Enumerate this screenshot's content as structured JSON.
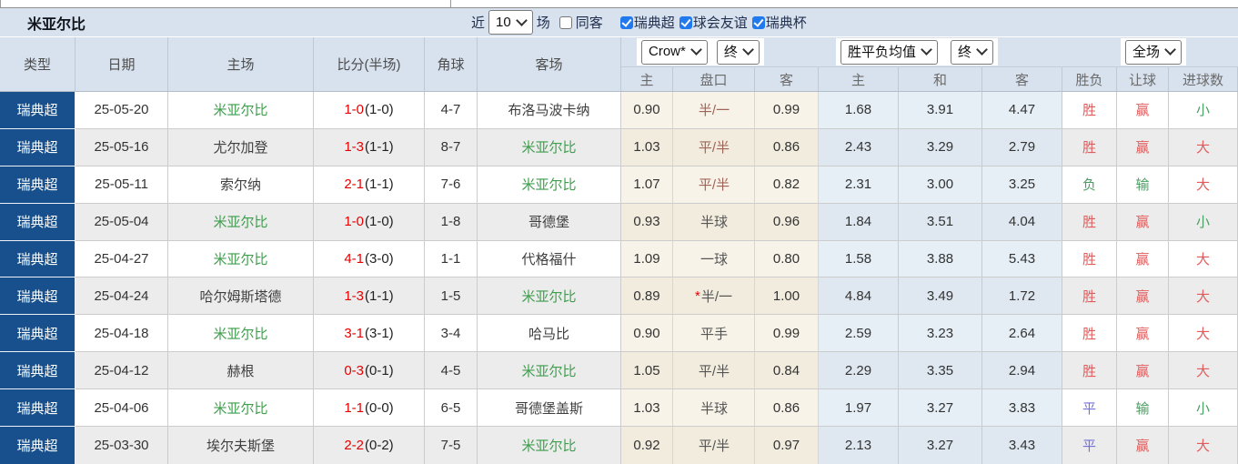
{
  "title_bar": {
    "title": "米亚尔比",
    "recent_label": "近",
    "recent_value": "10",
    "unit_label": "场",
    "same_venue_label": "同客",
    "same_venue_checked": false,
    "filters": [
      {
        "label": "瑞典超",
        "checked": true
      },
      {
        "label": "球会友谊",
        "checked": true
      },
      {
        "label": "瑞典杯",
        "checked": true
      }
    ]
  },
  "header": {
    "columns_left": [
      "类型",
      "日期",
      "主场",
      "比分(半场)",
      "角球",
      "客场"
    ],
    "odds_source": "Crow*",
    "odds_stage": "终",
    "avg_source": "胜平负均值",
    "avg_stage": "终",
    "scope": "全场",
    "odds_sub": [
      "主",
      "盘口",
      "客"
    ],
    "avg_sub": [
      "主",
      "和",
      "客"
    ],
    "result_sub": [
      "胜负",
      "让球",
      "进球数"
    ]
  },
  "star_glyph": "*",
  "colors": {
    "league_cell_bg": "#17508c",
    "score_red": "#e60000",
    "team_green": "#3f9e4d",
    "win_red": "#e25b5b",
    "lose_green": "#4a9d62",
    "draw_blue": "#7372d6",
    "handicap_red": "#a06358",
    "odds_col_bg": "#f8f3e8",
    "avg_col_bg": "#e6eff6",
    "header_bg": "#d8e2ee",
    "checkbox_blue": "#2179ee"
  },
  "rows": [
    {
      "league": "瑞典超",
      "date": "25-05-20",
      "home": "米亚尔比",
      "home_green": true,
      "score": "1-0",
      "half": "(1-0)",
      "corners": "4-7",
      "away": "布洛马波卡纳",
      "away_green": false,
      "o1": "0.90",
      "pan": "半/一",
      "pan_star": false,
      "pan_color": "red",
      "o2": "0.99",
      "m1": "1.68",
      "m2": "3.91",
      "m3": "4.47",
      "r1": "胜",
      "r1c": "red",
      "r2": "赢",
      "r2c": "red",
      "r3": "小",
      "r3c": "green"
    },
    {
      "league": "瑞典超",
      "date": "25-05-16",
      "home": "尤尔加登",
      "home_green": false,
      "score": "1-3",
      "half": "(1-1)",
      "corners": "8-7",
      "away": "米亚尔比",
      "away_green": true,
      "o1": "1.03",
      "pan": "平/半",
      "pan_star": false,
      "pan_color": "red",
      "o2": "0.86",
      "m1": "2.43",
      "m2": "3.29",
      "m3": "2.79",
      "r1": "胜",
      "r1c": "red",
      "r2": "赢",
      "r2c": "red",
      "r3": "大",
      "r3c": "red"
    },
    {
      "league": "瑞典超",
      "date": "25-05-11",
      "home": "索尔纳",
      "home_green": false,
      "score": "2-1",
      "half": "(1-1)",
      "corners": "7-6",
      "away": "米亚尔比",
      "away_green": true,
      "o1": "1.07",
      "pan": "平/半",
      "pan_star": false,
      "pan_color": "red",
      "o2": "0.82",
      "m1": "2.31",
      "m2": "3.00",
      "m3": "3.25",
      "r1": "负",
      "r1c": "green",
      "r2": "输",
      "r2c": "green",
      "r3": "大",
      "r3c": "red"
    },
    {
      "league": "瑞典超",
      "date": "25-05-04",
      "home": "米亚尔比",
      "home_green": true,
      "score": "1-0",
      "half": "(1-0)",
      "corners": "1-8",
      "away": "哥德堡",
      "away_green": false,
      "o1": "0.93",
      "pan": "半球",
      "pan_star": false,
      "pan_color": "gray",
      "o2": "0.96",
      "m1": "1.84",
      "m2": "3.51",
      "m3": "4.04",
      "r1": "胜",
      "r1c": "red",
      "r2": "赢",
      "r2c": "red",
      "r3": "小",
      "r3c": "green"
    },
    {
      "league": "瑞典超",
      "date": "25-04-27",
      "home": "米亚尔比",
      "home_green": true,
      "score": "4-1",
      "half": "(3-0)",
      "corners": "1-1",
      "away": "代格福什",
      "away_green": false,
      "o1": "1.09",
      "pan": "一球",
      "pan_star": false,
      "pan_color": "gray",
      "o2": "0.80",
      "m1": "1.58",
      "m2": "3.88",
      "m3": "5.43",
      "r1": "胜",
      "r1c": "red",
      "r2": "赢",
      "r2c": "red",
      "r3": "大",
      "r3c": "red"
    },
    {
      "league": "瑞典超",
      "date": "25-04-24",
      "home": "哈尔姆斯塔德",
      "home_green": false,
      "score": "1-3",
      "half": "(1-1)",
      "corners": "1-5",
      "away": "米亚尔比",
      "away_green": true,
      "o1": "0.89",
      "pan": "半/一",
      "pan_star": true,
      "pan_color": "gray",
      "o2": "1.00",
      "m1": "4.84",
      "m2": "3.49",
      "m3": "1.72",
      "r1": "胜",
      "r1c": "red",
      "r2": "赢",
      "r2c": "red",
      "r3": "大",
      "r3c": "red"
    },
    {
      "league": "瑞典超",
      "date": "25-04-18",
      "home": "米亚尔比",
      "home_green": true,
      "score": "3-1",
      "half": "(3-1)",
      "corners": "3-4",
      "away": "哈马比",
      "away_green": false,
      "o1": "0.90",
      "pan": "平手",
      "pan_star": false,
      "pan_color": "gray",
      "o2": "0.99",
      "m1": "2.59",
      "m2": "3.23",
      "m3": "2.64",
      "r1": "胜",
      "r1c": "red",
      "r2": "赢",
      "r2c": "red",
      "r3": "大",
      "r3c": "red"
    },
    {
      "league": "瑞典超",
      "date": "25-04-12",
      "home": "赫根",
      "home_green": false,
      "score": "0-3",
      "half": "(0-1)",
      "corners": "4-5",
      "away": "米亚尔比",
      "away_green": true,
      "o1": "1.05",
      "pan": "平/半",
      "pan_star": false,
      "pan_color": "gray",
      "o2": "0.84",
      "m1": "2.29",
      "m2": "3.35",
      "m3": "2.94",
      "r1": "胜",
      "r1c": "red",
      "r2": "赢",
      "r2c": "red",
      "r3": "大",
      "r3c": "red"
    },
    {
      "league": "瑞典超",
      "date": "25-04-06",
      "home": "米亚尔比",
      "home_green": true,
      "score": "1-1",
      "half": "(0-0)",
      "corners": "6-5",
      "away": "哥德堡盖斯",
      "away_green": false,
      "o1": "1.03",
      "pan": "半球",
      "pan_star": false,
      "pan_color": "gray",
      "o2": "0.86",
      "m1": "1.97",
      "m2": "3.27",
      "m3": "3.83",
      "r1": "平",
      "r1c": "blue",
      "r2": "输",
      "r2c": "green",
      "r3": "小",
      "r3c": "green"
    },
    {
      "league": "瑞典超",
      "date": "25-03-30",
      "home": "埃尔夫斯堡",
      "home_green": false,
      "score": "2-2",
      "half": "(0-2)",
      "corners": "7-5",
      "away": "米亚尔比",
      "away_green": true,
      "o1": "0.92",
      "pan": "平/半",
      "pan_star": false,
      "pan_color": "gray",
      "o2": "0.97",
      "m1": "2.13",
      "m2": "3.27",
      "m3": "3.43",
      "r1": "平",
      "r1c": "blue",
      "r2": "赢",
      "r2c": "red",
      "r3": "大",
      "r3c": "red"
    }
  ]
}
